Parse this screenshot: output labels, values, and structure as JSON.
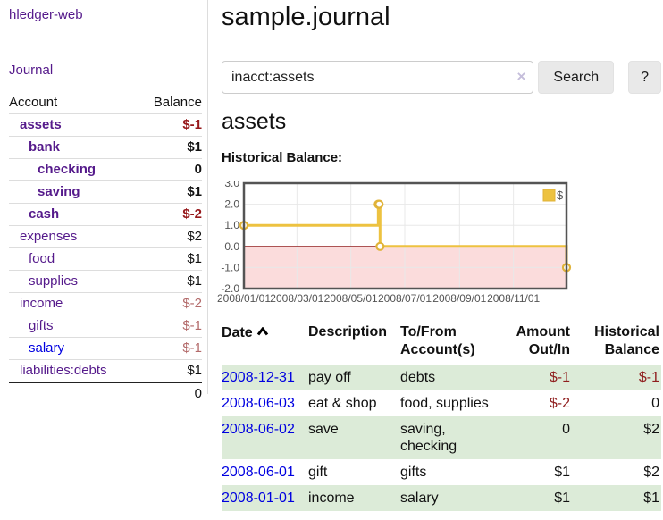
{
  "app": {
    "brand": "hledger-web"
  },
  "sidebar": {
    "nav": {
      "journal_label": "Journal"
    },
    "accounts": {
      "headers": {
        "account": "Account",
        "balance": "Balance"
      },
      "rows": [
        {
          "name": "assets",
          "balance": "$-1",
          "depth": 1,
          "emphasized": true,
          "balance_tone": "negative-strong",
          "link_tone": "purple"
        },
        {
          "name": "bank",
          "balance": "$1",
          "depth": 2,
          "emphasized": true,
          "balance_tone": "normal",
          "link_tone": "purple"
        },
        {
          "name": "checking",
          "balance": "0",
          "depth": 3,
          "emphasized": true,
          "balance_tone": "normal",
          "link_tone": "purple"
        },
        {
          "name": "saving",
          "balance": "$1",
          "depth": 3,
          "emphasized": true,
          "balance_tone": "normal",
          "link_tone": "purple"
        },
        {
          "name": "cash",
          "balance": "$-2",
          "depth": 2,
          "emphasized": true,
          "balance_tone": "negative-strong",
          "link_tone": "purple"
        },
        {
          "name": "expenses",
          "balance": "$2",
          "depth": 1,
          "emphasized": false,
          "balance_tone": "normal",
          "link_tone": "purple"
        },
        {
          "name": "food",
          "balance": "$1",
          "depth": 2,
          "emphasized": false,
          "balance_tone": "normal",
          "link_tone": "purple"
        },
        {
          "name": "supplies",
          "balance": "$1",
          "depth": 2,
          "emphasized": false,
          "balance_tone": "normal",
          "link_tone": "purple"
        },
        {
          "name": "income",
          "balance": "$-2",
          "depth": 1,
          "emphasized": false,
          "balance_tone": "negative-soft",
          "link_tone": "purple"
        },
        {
          "name": "gifts",
          "balance": "$-1",
          "depth": 2,
          "emphasized": false,
          "balance_tone": "negative-soft",
          "link_tone": "purple"
        },
        {
          "name": "salary",
          "balance": "$-1",
          "depth": 2,
          "emphasized": false,
          "balance_tone": "negative-soft",
          "link_tone": "blue"
        },
        {
          "name": "liabilities:debts",
          "balance": "$1",
          "depth": 1,
          "emphasized": false,
          "balance_tone": "normal",
          "link_tone": "purple"
        }
      ],
      "total": "0"
    }
  },
  "main": {
    "title": "sample.journal",
    "search": {
      "value": "inacct:assets",
      "clear_icon": "×",
      "search_label": "Search",
      "help_label": "?"
    },
    "account_heading": "assets",
    "chart_label": "Historical Balance:"
  },
  "chart_data": {
    "type": "line",
    "step": true,
    "title": "Historical Balance",
    "series": [
      {
        "name": "$",
        "points": [
          [
            "2008-01-01",
            1
          ],
          [
            "2008-06-01",
            2
          ],
          [
            "2008-06-02",
            2
          ],
          [
            "2008-06-03",
            0
          ],
          [
            "2008-12-31",
            -1
          ]
        ]
      }
    ],
    "xlim": [
      "2008-01-01",
      "2008-12-31"
    ],
    "ylim": [
      -2,
      3
    ],
    "xticks": [
      {
        "date": "2008-01-01",
        "label": "2008/01/01"
      },
      {
        "date": "2008-03-01",
        "label": "2008/03/01"
      },
      {
        "date": "2008-05-01",
        "label": "2008/05/01"
      },
      {
        "date": "2008-07-01",
        "label": "2008/07/01"
      },
      {
        "date": "2008-09-01",
        "label": "2008/09/01"
      },
      {
        "date": "2008-11-01",
        "label": "2008/11/01"
      }
    ],
    "yticks": [
      {
        "v": 3,
        "label": "3.0"
      },
      {
        "v": 2,
        "label": "2.0"
      },
      {
        "v": 1,
        "label": "1.0"
      },
      {
        "v": 0,
        "label": "0.0"
      },
      {
        "v": -1,
        "label": "-1.0"
      },
      {
        "v": -2,
        "label": "-2.0"
      }
    ],
    "grid": true,
    "legend_position": "top-right",
    "negative_region_shaded": true,
    "colors": {
      "series": "#edc240",
      "marker_ring": "#e0b339",
      "negative_region": "#fbdcdc",
      "zero_line": "#962020",
      "grid": "#e8e8e8",
      "border": "#545454",
      "tick_text": "#545454"
    }
  },
  "register": {
    "headers": [
      {
        "label": "Date",
        "align": "left"
      },
      {
        "label": "Description",
        "align": "left"
      },
      {
        "label": "To/From Account(s)",
        "align": "left"
      },
      {
        "label": "Amount Out/In",
        "align": "right"
      },
      {
        "label": "Historical Balance",
        "align": "right"
      }
    ],
    "rows": [
      {
        "date": "2008-12-31",
        "description": "pay off",
        "accounts": "debts",
        "amount": "$-1",
        "balance": "$-1",
        "amount_negative": true,
        "balance_negative": true,
        "shaded": true
      },
      {
        "date": "2008-06-03",
        "description": "eat & shop",
        "accounts": "food, supplies",
        "amount": "$-2",
        "balance": "0",
        "amount_negative": true,
        "balance_negative": false,
        "shaded": false
      },
      {
        "date": "2008-06-02",
        "description": "save",
        "accounts": "saving, checking",
        "amount": "0",
        "balance": "$2",
        "amount_negative": false,
        "balance_negative": false,
        "shaded": true
      },
      {
        "date": "2008-06-01",
        "description": "gift",
        "accounts": "gifts",
        "amount": "$1",
        "balance": "$2",
        "amount_negative": false,
        "balance_negative": false,
        "shaded": false
      },
      {
        "date": "2008-01-01",
        "description": "income",
        "accounts": "salary",
        "amount": "$1",
        "balance": "$1",
        "amount_negative": false,
        "balance_negative": false,
        "shaded": true
      }
    ]
  }
}
